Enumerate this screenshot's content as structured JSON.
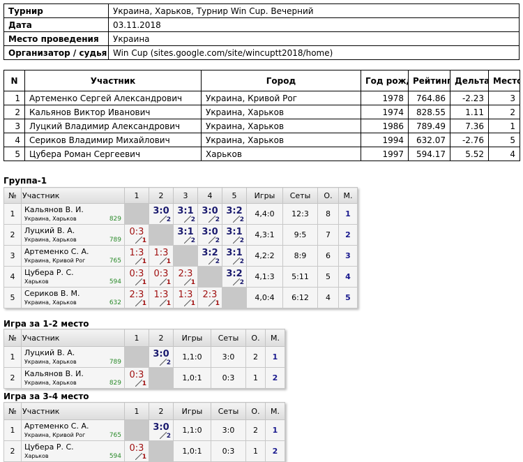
{
  "info": {
    "rows": [
      {
        "label": "Турнир",
        "value": "Украина, Харьков, Турнир Win Cup. Вечерний"
      },
      {
        "label": "Дата",
        "value": "03.11.2018"
      },
      {
        "label": "Место проведения",
        "value": "Украина"
      },
      {
        "label": "Организатор / судья",
        "value": "Win Cup (sites.google.com/site/wincuptt2018/home)"
      }
    ]
  },
  "participants": {
    "headers": [
      "N",
      "Участник",
      "Город",
      "Год рожд.",
      "Рейтинг",
      "Дельта",
      "Место"
    ],
    "rows": [
      [
        "1",
        "Артеменко Сергей Александрович",
        "Украина, Кривой Рог",
        "1978",
        "764.86",
        "-2.23",
        "3"
      ],
      [
        "2",
        "Кальянов Виктор Иванович",
        "Украина, Харьков",
        "1974",
        "828.55",
        "1.11",
        "2"
      ],
      [
        "3",
        "Луцкий Владимир Александрович",
        "Украина, Харьков",
        "1986",
        "789.49",
        "7.36",
        "1"
      ],
      [
        "4",
        "Сериков Владимир Михайлович",
        "Украина, Харьков",
        "1994",
        "632.07",
        "-2.76",
        "5"
      ],
      [
        "5",
        "Цубера Роман Сергеевич",
        "Харьков",
        "1997",
        "594.17",
        "5.52",
        "4"
      ]
    ]
  },
  "groups": [
    {
      "title": "Группа-1",
      "headers": [
        "№",
        "Участник",
        "1",
        "2",
        "3",
        "4",
        "5",
        "Игры",
        "Сеты",
        "О.",
        "М."
      ],
      "rows": [
        {
          "n": "1",
          "name": "Кальянов В. И.",
          "city": "Украина, Харьков",
          "rating": "829",
          "results": [
            null,
            {
              "score": "3:0",
              "points": "2"
            },
            {
              "score": "3:1",
              "points": "2"
            },
            {
              "score": "3:0",
              "points": "2"
            },
            {
              "score": "3:2",
              "points": "2"
            }
          ],
          "games": "4,4:0",
          "sets": "12:3",
          "points": "8",
          "place": "1"
        },
        {
          "n": "2",
          "name": "Луцкий В. А.",
          "city": "Украина, Харьков",
          "rating": "789",
          "results": [
            {
              "score": "0:3",
              "points": "1"
            },
            null,
            {
              "score": "3:1",
              "points": "2"
            },
            {
              "score": "3:0",
              "points": "2"
            },
            {
              "score": "3:1",
              "points": "2"
            }
          ],
          "games": "4,3:1",
          "sets": "9:5",
          "points": "7",
          "place": "2"
        },
        {
          "n": "3",
          "name": "Артеменко С. А.",
          "city": "Украина, Кривой Рог",
          "rating": "765",
          "results": [
            {
              "score": "1:3",
              "points": "1"
            },
            {
              "score": "1:3",
              "points": "1"
            },
            null,
            {
              "score": "3:2",
              "points": "2"
            },
            {
              "score": "3:1",
              "points": "2"
            }
          ],
          "games": "4,2:2",
          "sets": "8:9",
          "points": "6",
          "place": "3"
        },
        {
          "n": "4",
          "name": "Цубера Р. С.",
          "city": "Харьков",
          "rating": "594",
          "results": [
            {
              "score": "0:3",
              "points": "1"
            },
            {
              "score": "0:3",
              "points": "1"
            },
            {
              "score": "2:3",
              "points": "1"
            },
            null,
            {
              "score": "3:2",
              "points": "2"
            }
          ],
          "games": "4,1:3",
          "sets": "5:11",
          "points": "5",
          "place": "4"
        },
        {
          "n": "5",
          "name": "Сериков В. М.",
          "city": "Украина, Харьков",
          "rating": "632",
          "results": [
            {
              "score": "2:3",
              "points": "1"
            },
            {
              "score": "1:3",
              "points": "1"
            },
            {
              "score": "1:3",
              "points": "1"
            },
            {
              "score": "2:3",
              "points": "1"
            },
            null
          ],
          "games": "4,0:4",
          "sets": "6:12",
          "points": "4",
          "place": "5"
        }
      ]
    },
    {
      "title": "Игра за 1-2 место",
      "headers": [
        "№",
        "Участник",
        "1",
        "2",
        "Игры",
        "Сеты",
        "О.",
        "М."
      ],
      "rows": [
        {
          "n": "1",
          "name": "Луцкий В. А.",
          "city": "Украина, Харьков",
          "rating": "789",
          "results": [
            null,
            {
              "score": "3:0",
              "points": "2"
            }
          ],
          "games": "1,1:0",
          "sets": "3:0",
          "points": "2",
          "place": "1"
        },
        {
          "n": "2",
          "name": "Кальянов В. И.",
          "city": "Украина, Харьков",
          "rating": "829",
          "results": [
            {
              "score": "0:3",
              "points": "1"
            },
            null
          ],
          "games": "1,0:1",
          "sets": "0:3",
          "points": "1",
          "place": "2"
        }
      ]
    },
    {
      "title": "Игра за 3-4 место",
      "headers": [
        "№",
        "Участник",
        "1",
        "2",
        "Игры",
        "Сеты",
        "О.",
        "М."
      ],
      "rows": [
        {
          "n": "1",
          "name": "Артеменко С. А.",
          "city": "Украина, Кривой Рог",
          "rating": "765",
          "results": [
            null,
            {
              "score": "3:0",
              "points": "2"
            }
          ],
          "games": "1,1:0",
          "sets": "3:0",
          "points": "2",
          "place": "1"
        },
        {
          "n": "2",
          "name": "Цубера Р. С.",
          "city": "Харьков",
          "rating": "594",
          "results": [
            {
              "score": "0:3",
              "points": "1"
            },
            null
          ],
          "games": "1,0:1",
          "sets": "0:3",
          "points": "1",
          "place": "2"
        }
      ]
    }
  ]
}
